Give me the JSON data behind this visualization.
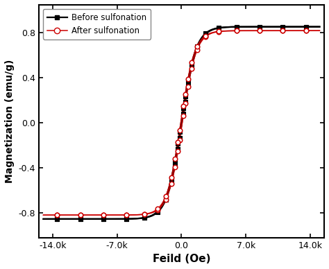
{
  "xlabel": "Feild (Oe)",
  "ylabel": "Magnetization (emu/g)",
  "xlim": [
    -15500,
    15500
  ],
  "ylim": [
    -1.02,
    1.05
  ],
  "xticks": [
    -14000,
    -7000,
    0,
    7000,
    14000
  ],
  "xtick_labels": [
    "-14.0k",
    "-7.0k",
    "0.0",
    "7.0k",
    "14.0k"
  ],
  "yticks": [
    -0.8,
    -0.4,
    0.0,
    0.4,
    0.8
  ],
  "series1_label": "Before sulfonation",
  "series2_label": "After sulfonation",
  "line_color1": "#000000",
  "line_color2": "#cc0000",
  "marker_color1": "#000000",
  "marker_color2": "#cc0000",
  "Ms1": 0.855,
  "Ms2": 0.82,
  "Hc1": 50,
  "Hc2": 80,
  "a1": 1600,
  "a2": 1500,
  "background": "#ffffff",
  "marker_H_pos": [
    200,
    400,
    700,
    1100,
    1700,
    2600,
    4000,
    6000,
    8500,
    11000,
    13500
  ],
  "marker_H_neg": [
    -200,
    -400,
    -700,
    -1100,
    -1700,
    -2600,
    -4000,
    -6000,
    -8500,
    -11000,
    -13500
  ]
}
